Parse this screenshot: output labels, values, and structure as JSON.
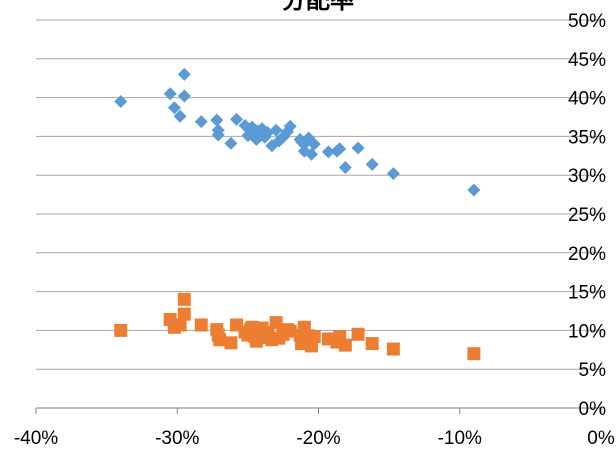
{
  "chart_data": {
    "type": "scatter",
    "title": "分配率",
    "xlim": [
      -0.4,
      0.0
    ],
    "ylim": [
      0.0,
      0.5
    ],
    "x_ticks": [
      -0.4,
      -0.3,
      -0.2,
      -0.1,
      0.0
    ],
    "x_tick_labels": [
      "-40%",
      "-30%",
      "-20%",
      "-10%",
      "0%"
    ],
    "y_ticks": [
      0.0,
      0.05,
      0.1,
      0.15,
      0.2,
      0.25,
      0.3,
      0.35,
      0.4,
      0.45,
      0.5
    ],
    "y_tick_labels": [
      "0%",
      "5%",
      "10%",
      "15%",
      "20%",
      "25%",
      "30%",
      "35%",
      "40%",
      "45%",
      "50%"
    ],
    "grid": "horizontal",
    "legend": "none",
    "series": [
      {
        "marker": "diamond",
        "color": "#5B9BD5",
        "points": [
          [
            -0.34,
            0.395
          ],
          [
            -0.305,
            0.405
          ],
          [
            -0.302,
            0.387
          ],
          [
            -0.298,
            0.376
          ],
          [
            -0.295,
            0.43
          ],
          [
            -0.295,
            0.402
          ],
          [
            -0.283,
            0.369
          ],
          [
            -0.272,
            0.371
          ],
          [
            -0.271,
            0.358
          ],
          [
            -0.271,
            0.352
          ],
          [
            -0.262,
            0.341
          ],
          [
            -0.258,
            0.372
          ],
          [
            -0.252,
            0.364
          ],
          [
            -0.25,
            0.351
          ],
          [
            -0.248,
            0.358
          ],
          [
            -0.247,
            0.362
          ],
          [
            -0.245,
            0.354
          ],
          [
            -0.244,
            0.346
          ],
          [
            -0.243,
            0.357
          ],
          [
            -0.241,
            0.351
          ],
          [
            -0.24,
            0.36
          ],
          [
            -0.238,
            0.349
          ],
          [
            -0.236,
            0.355
          ],
          [
            -0.233,
            0.338
          ],
          [
            -0.23,
            0.358
          ],
          [
            -0.228,
            0.344
          ],
          [
            -0.225,
            0.349
          ],
          [
            -0.222,
            0.356
          ],
          [
            -0.22,
            0.363
          ],
          [
            -0.213,
            0.346
          ],
          [
            -0.212,
            0.343
          ],
          [
            -0.21,
            0.331
          ],
          [
            -0.209,
            0.342
          ],
          [
            -0.207,
            0.348
          ],
          [
            -0.205,
            0.327
          ],
          [
            -0.203,
            0.34
          ],
          [
            -0.193,
            0.33
          ],
          [
            -0.187,
            0.331
          ],
          [
            -0.185,
            0.334
          ],
          [
            -0.181,
            0.31
          ],
          [
            -0.172,
            0.335
          ],
          [
            -0.162,
            0.314
          ],
          [
            -0.147,
            0.302
          ],
          [
            -0.09,
            0.281
          ]
        ]
      },
      {
        "marker": "square",
        "color": "#ED7D31",
        "points": [
          [
            -0.34,
            0.1
          ],
          [
            -0.305,
            0.114
          ],
          [
            -0.302,
            0.104
          ],
          [
            -0.298,
            0.107
          ],
          [
            -0.295,
            0.14
          ],
          [
            -0.295,
            0.121
          ],
          [
            -0.283,
            0.107
          ],
          [
            -0.272,
            0.101
          ],
          [
            -0.271,
            0.094
          ],
          [
            -0.27,
            0.088
          ],
          [
            -0.262,
            0.084
          ],
          [
            -0.258,
            0.107
          ],
          [
            -0.252,
            0.098
          ],
          [
            -0.25,
            0.094
          ],
          [
            -0.248,
            0.101
          ],
          [
            -0.247,
            0.104
          ],
          [
            -0.245,
            0.092
          ],
          [
            -0.244,
            0.086
          ],
          [
            -0.243,
            0.1
          ],
          [
            -0.241,
            0.095
          ],
          [
            -0.24,
            0.103
          ],
          [
            -0.238,
            0.091
          ],
          [
            -0.236,
            0.097
          ],
          [
            -0.233,
            0.088
          ],
          [
            -0.23,
            0.11
          ],
          [
            -0.228,
            0.09
          ],
          [
            -0.225,
            0.095
          ],
          [
            -0.222,
            0.101
          ],
          [
            -0.22,
            0.099
          ],
          [
            -0.213,
            0.094
          ],
          [
            -0.212,
            0.083
          ],
          [
            -0.21,
            0.104
          ],
          [
            -0.209,
            0.087
          ],
          [
            -0.207,
            0.093
          ],
          [
            -0.205,
            0.08
          ],
          [
            -0.203,
            0.092
          ],
          [
            -0.193,
            0.089
          ],
          [
            -0.187,
            0.085
          ],
          [
            -0.185,
            0.092
          ],
          [
            -0.181,
            0.081
          ],
          [
            -0.172,
            0.095
          ],
          [
            -0.162,
            0.083
          ],
          [
            -0.147,
            0.076
          ],
          [
            -0.09,
            0.07
          ]
        ]
      }
    ]
  }
}
